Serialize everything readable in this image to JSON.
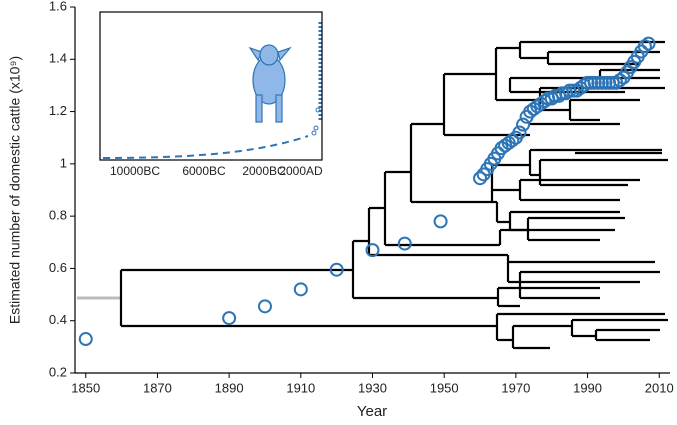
{
  "chart_data": {
    "type": "scatter",
    "x_label": "Year",
    "y_label": "Estimated number of domestic cattle (x10⁹)",
    "color": "#2e75b6",
    "xlim": [
      1847,
      2013
    ],
    "ylim": [
      0.2,
      1.6
    ],
    "xticks": [
      1850,
      1870,
      1890,
      1910,
      1930,
      1950,
      1970,
      1990,
      2010
    ],
    "yticks": [
      0.2,
      0.4,
      0.6,
      0.8,
      1,
      1.2,
      1.4,
      1.6
    ],
    "x": [
      1850,
      1890,
      1900,
      1910,
      1920,
      1930,
      1939,
      1949,
      1960,
      1961,
      1962,
      1963,
      1964,
      1965,
      1966,
      1967,
      1968,
      1969,
      1970,
      1971,
      1972,
      1973,
      1974,
      1975,
      1976,
      1977,
      1978,
      1979,
      1980,
      1981,
      1982,
      1983,
      1984,
      1985,
      1986,
      1987,
      1988,
      1989,
      1990,
      1991,
      1992,
      1993,
      1994,
      1995,
      1996,
      1997,
      1998,
      1999,
      2000,
      2001,
      2002,
      2003,
      2004,
      2005,
      2006,
      2007
    ],
    "values": [
      0.33,
      0.41,
      0.455,
      0.52,
      0.595,
      0.67,
      0.695,
      0.78,
      0.945,
      0.96,
      0.98,
      1.0,
      1.02,
      1.04,
      1.06,
      1.07,
      1.08,
      1.09,
      1.1,
      1.12,
      1.15,
      1.18,
      1.2,
      1.21,
      1.22,
      1.23,
      1.24,
      1.25,
      1.25,
      1.26,
      1.26,
      1.27,
      1.27,
      1.28,
      1.28,
      1.28,
      1.29,
      1.3,
      1.31,
      1.31,
      1.31,
      1.31,
      1.31,
      1.31,
      1.31,
      1.31,
      1.31,
      1.32,
      1.33,
      1.35,
      1.37,
      1.39,
      1.41,
      1.43,
      1.45,
      1.46
    ],
    "inset_xticks": [
      "10000BC",
      "6000BC",
      "2000BC",
      "2000AD"
    ]
  }
}
